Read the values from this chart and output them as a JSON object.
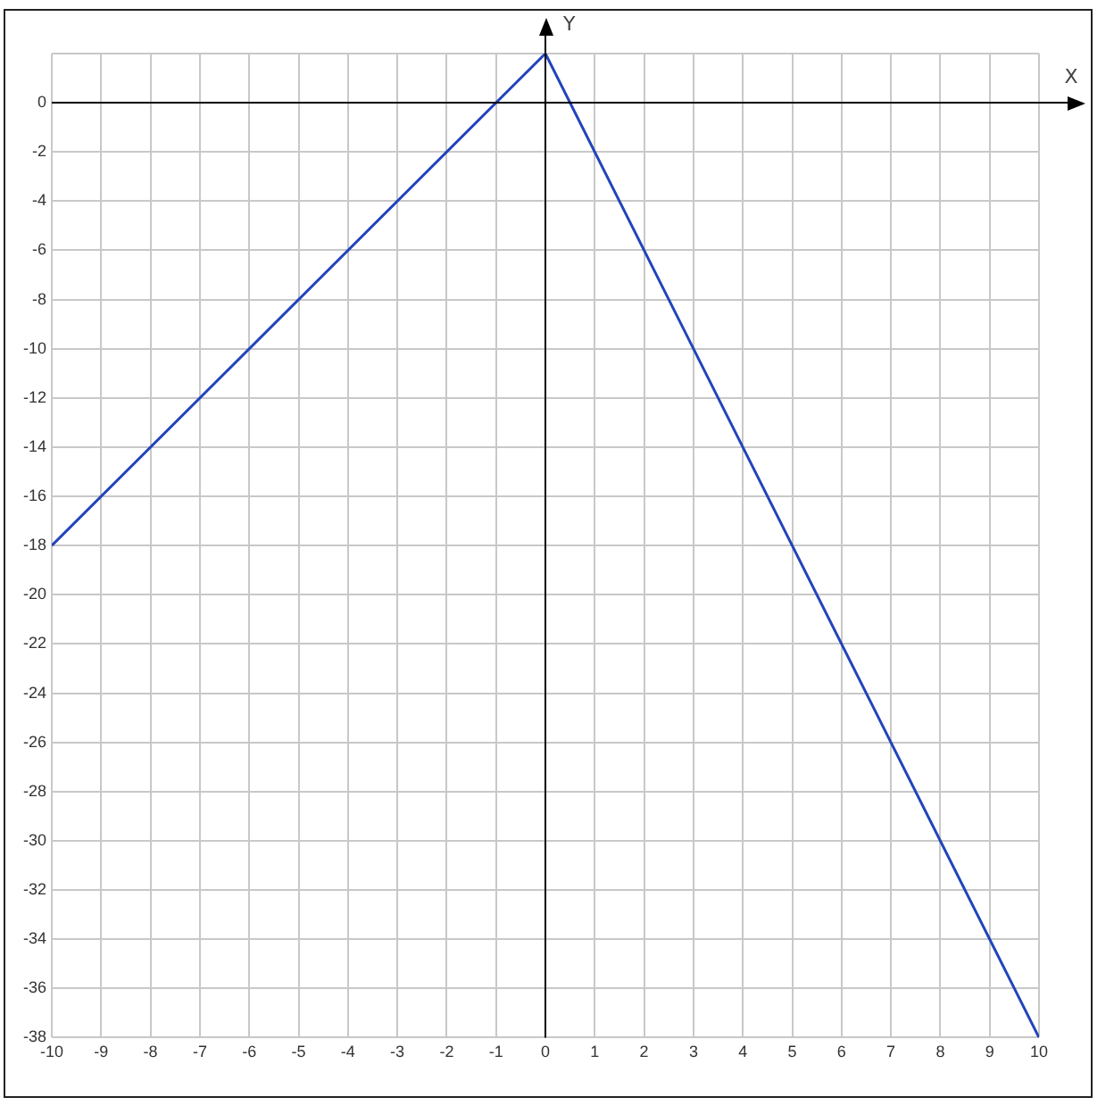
{
  "chart_data": {
    "type": "line",
    "xlabel": "X",
    "ylabel": "Y",
    "x": [
      -10,
      0,
      10
    ],
    "series": [
      {
        "color": "#2244bb",
        "values": [
          -18,
          2,
          -38
        ]
      }
    ],
    "xlim": [
      -10,
      10
    ],
    "xticks": [
      -10,
      -9,
      -8,
      -7,
      -6,
      -5,
      -4,
      -3,
      -2,
      -1,
      0,
      1,
      2,
      3,
      4,
      5,
      6,
      7,
      8,
      9,
      10
    ],
    "ylim": [
      -38,
      2
    ],
    "yticks": [
      -38,
      -36,
      -34,
      -32,
      -30,
      -28,
      -26,
      -24,
      -22,
      -20,
      -18,
      -16,
      -14,
      -12,
      -10,
      -8,
      -6,
      -4,
      -2,
      0,
      {
        "value": 2,
        "label": null
      }
    ],
    "grid": true,
    "legend": false,
    "marker": "none",
    "line_style": "solid"
  }
}
